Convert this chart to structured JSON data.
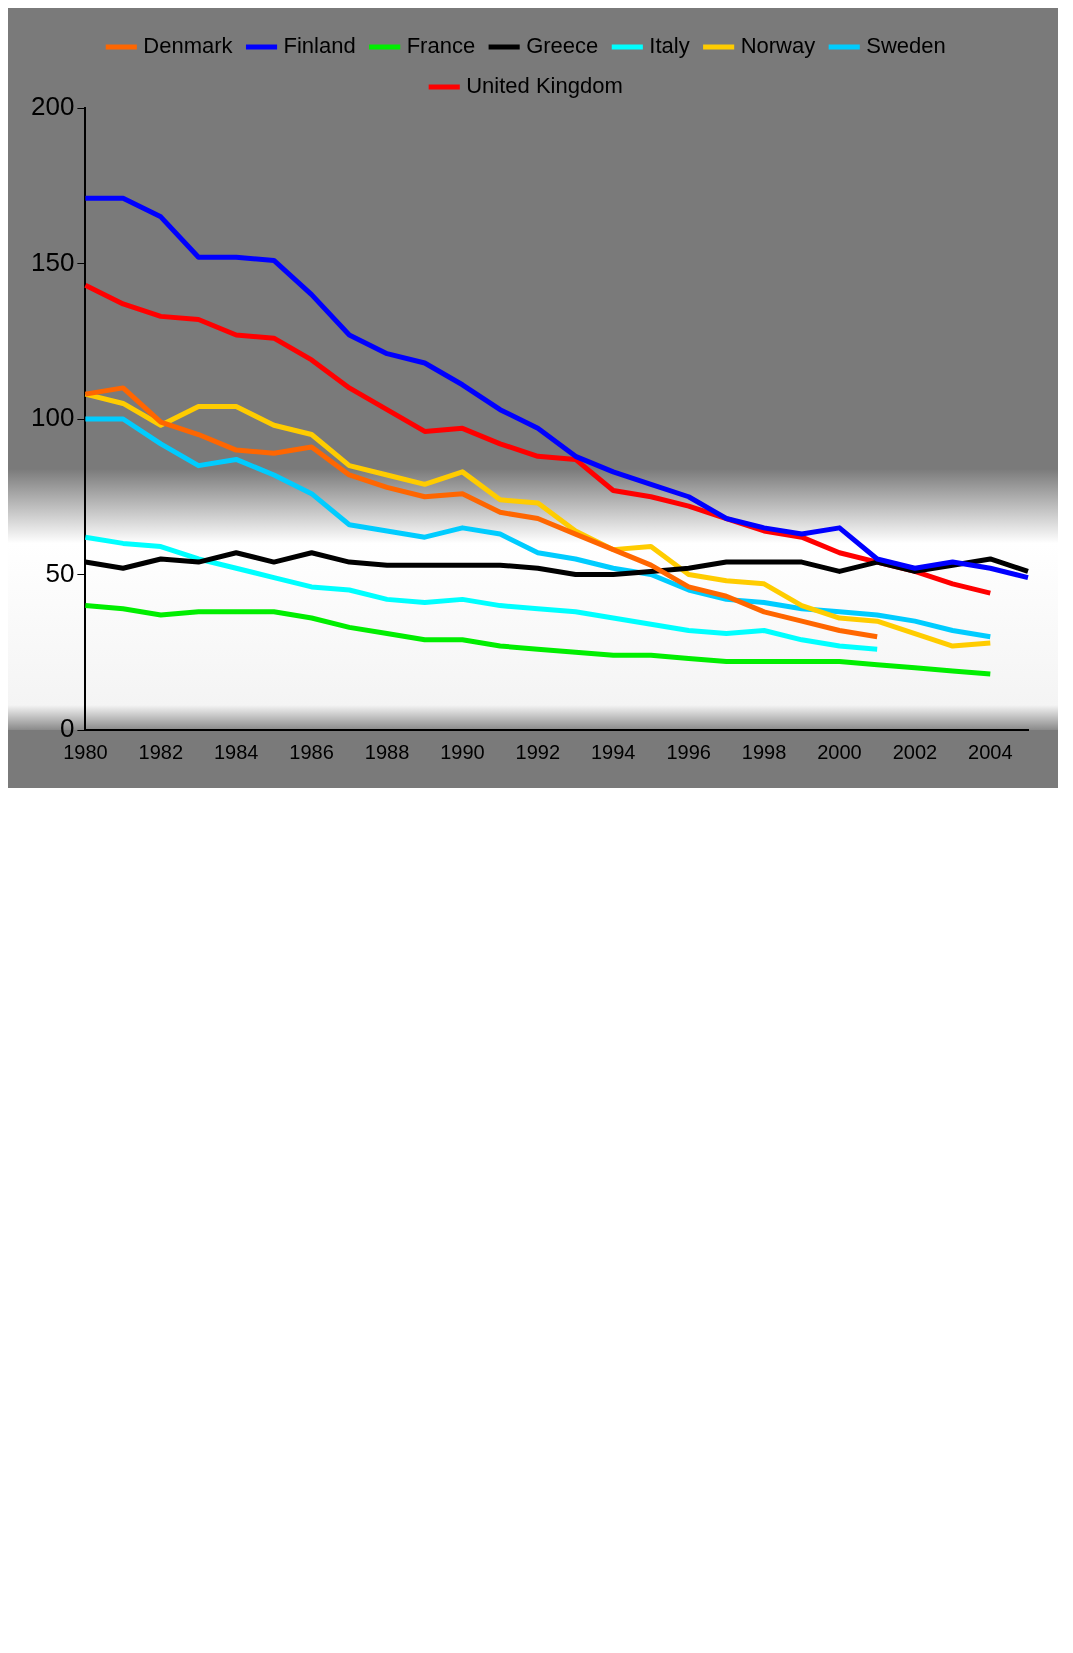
{
  "chart_data": {
    "type": "line",
    "categories": [
      "1980",
      null,
      "1982",
      null,
      "1984",
      null,
      "1986",
      null,
      "1988",
      null,
      "1990",
      null,
      "1992",
      null,
      "1994",
      null,
      "1996",
      null,
      "1998",
      null,
      "2000",
      null,
      "2002",
      null,
      "2004",
      null
    ],
    "ylim": [
      0,
      200
    ],
    "yticks": [
      0,
      50,
      100,
      150,
      200
    ],
    "grid": false,
    "legend": "top",
    "marker": "none",
    "line_style": "solid",
    "series": [
      {
        "name": "Denmark",
        "color": "#ff6600",
        "values": [
          108,
          110,
          99,
          95,
          90,
          89,
          91,
          82,
          78,
          75,
          76,
          70,
          68,
          63,
          58,
          53,
          46,
          43,
          38,
          35,
          32,
          30,
          null,
          null,
          null,
          null
        ]
      },
      {
        "name": "Finland",
        "color": "#0000ff",
        "values": [
          171,
          171,
          165,
          152,
          152,
          151,
          140,
          127,
          121,
          118,
          111,
          103,
          97,
          88,
          83,
          79,
          75,
          68,
          65,
          63,
          65,
          55,
          52,
          54,
          52,
          49
        ]
      },
      {
        "name": "France",
        "color": "#00ee00",
        "values": [
          40,
          39,
          37,
          38,
          38,
          38,
          36,
          33,
          31,
          29,
          29,
          27,
          26,
          25,
          24,
          24,
          23,
          22,
          22,
          22,
          22,
          21,
          20,
          19,
          18,
          null
        ]
      },
      {
        "name": "Greece",
        "color": "#000000",
        "values": [
          54,
          52,
          55,
          54,
          57,
          54,
          57,
          54,
          53,
          53,
          53,
          53,
          52,
          50,
          50,
          51,
          52,
          54,
          54,
          54,
          51,
          54,
          51,
          53,
          55,
          51
        ]
      },
      {
        "name": "Italy",
        "color": "#00ffff",
        "values": [
          62,
          60,
          59,
          55,
          52,
          49,
          46,
          45,
          42,
          41,
          42,
          40,
          39,
          38,
          36,
          34,
          32,
          31,
          32,
          29,
          27,
          26,
          null,
          null,
          null,
          null
        ]
      },
      {
        "name": "Norway",
        "color": "#ffcc00",
        "values": [
          108,
          105,
          98,
          104,
          104,
          98,
          95,
          85,
          82,
          79,
          83,
          74,
          73,
          64,
          58,
          59,
          50,
          48,
          47,
          40,
          36,
          35,
          31,
          27,
          28,
          null
        ]
      },
      {
        "name": "Sweden",
        "color": "#00ccff",
        "values": [
          100,
          100,
          92,
          85,
          87,
          82,
          76,
          66,
          64,
          62,
          65,
          63,
          57,
          55,
          52,
          50,
          45,
          42,
          41,
          39,
          38,
          37,
          35,
          32,
          30,
          null
        ]
      },
      {
        "name": "United Kingdom",
        "color": "#ff0000",
        "values": [
          143,
          137,
          133,
          132,
          127,
          126,
          119,
          110,
          103,
          96,
          97,
          92,
          88,
          87,
          77,
          75,
          72,
          68,
          64,
          62,
          57,
          54,
          51,
          47,
          44,
          null
        ]
      }
    ]
  }
}
